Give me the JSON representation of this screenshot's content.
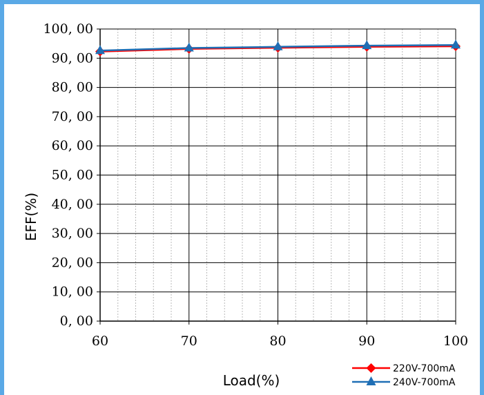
{
  "chart_data": {
    "type": "line",
    "title": "",
    "xlabel": "Load(%)",
    "ylabel": "EFF(%)",
    "x": [
      60,
      70,
      80,
      90,
      100
    ],
    "x_tick_labels": [
      "60",
      "70",
      "80",
      "90",
      "100"
    ],
    "y_tick_labels": [
      "0, 00",
      "10, 00",
      "20, 00",
      "30, 00",
      "40, 00",
      "50, 00",
      "60, 00",
      "70, 00",
      "80, 00",
      "90, 00",
      "100, 00"
    ],
    "xlim": [
      60,
      100
    ],
    "ylim": [
      0,
      100
    ],
    "grid": true,
    "legend_position": "bottom-right",
    "series": [
      {
        "name": "220V-700mA",
        "color": "#ff0000",
        "marker": "diamond",
        "values": [
          92.3,
          93.2,
          93.6,
          93.9,
          94.1
        ]
      },
      {
        "name": "240V-700mA",
        "color": "#1f6fb5",
        "marker": "triangle",
        "values": [
          92.6,
          93.5,
          93.9,
          94.3,
          94.5
        ]
      }
    ]
  }
}
